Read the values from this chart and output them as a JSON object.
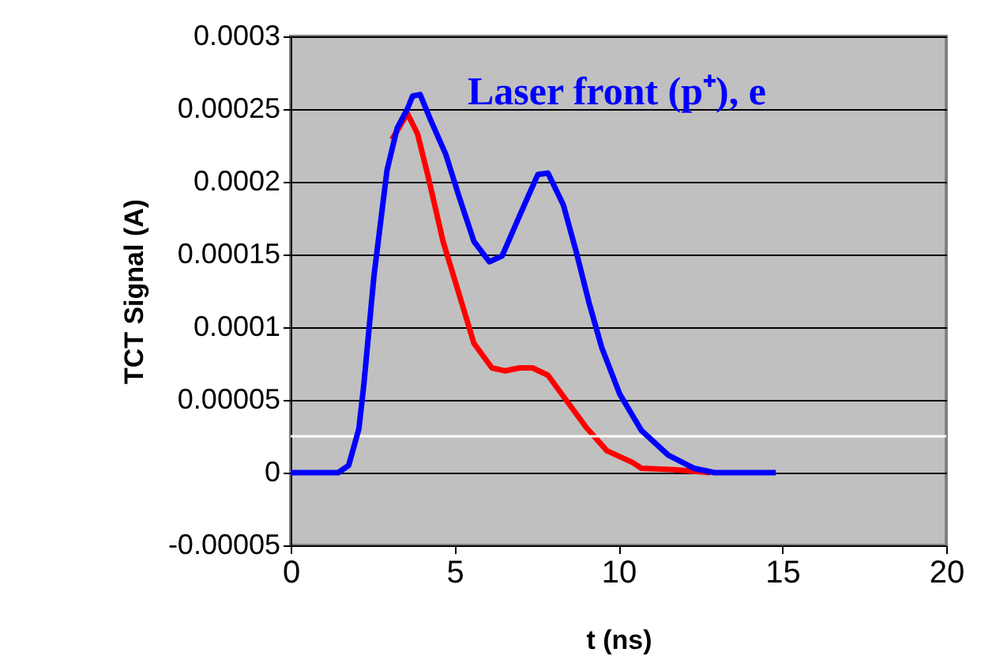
{
  "chart_data": {
    "type": "line",
    "xlabel": "t (ns)",
    "ylabel": "TCT Signal (A)",
    "xlim": [
      0,
      20
    ],
    "xticks": [
      0,
      5,
      10,
      15,
      20
    ],
    "ylim": [
      -5e-05,
      0.0003
    ],
    "yticks": [
      {
        "value": -5e-05,
        "label": "-0.00005"
      },
      0,
      {
        "value": 5e-05,
        "label": "0.00005"
      },
      0.0001,
      0.00015,
      0.0002,
      0.00025,
      0.0003
    ],
    "grid": "y",
    "marker": "none",
    "line_style": "solid",
    "ref_lines": [
      {
        "axis": "y",
        "value": 2.5e-05,
        "color": "#ffffff"
      }
    ],
    "series": [
      {
        "color": "#ff0000",
        "x": [
          3.09,
          3.56,
          3.87,
          4.18,
          4.65,
          5.12,
          5.59,
          6.14,
          6.53,
          6.99,
          7.38,
          7.85,
          8.4,
          9.02,
          9.65,
          10.43,
          10.7,
          11.7,
          12.8
        ],
        "values": [
          0.000229,
          0.000247,
          0.000233,
          0.000205,
          0.000159,
          0.000124,
          8.9e-05,
          7.2e-05,
          7e-05,
          7.2e-05,
          7.2e-05,
          6.7e-05,
          5e-05,
          3.1e-05,
          1.5e-05,
          7e-06,
          3e-06,
          2e-06,
          0
        ]
      },
      {
        "name": "Laser front (p⁺), e",
        "color": "#0000ff",
        "x": [
          0,
          1.45,
          1.77,
          2.08,
          2.23,
          2.54,
          2.94,
          3.25,
          3.56,
          3.72,
          3.95,
          4.26,
          4.73,
          5.12,
          5.59,
          6.06,
          6.45,
          6.99,
          7.54,
          7.85,
          8.32,
          8.71,
          9.1,
          9.49,
          10.04,
          10.7,
          11.52,
          12.3,
          12.93,
          14.8
        ],
        "values": [
          0,
          0,
          5e-06,
          3e-05,
          6e-05,
          0.000135,
          0.000208,
          0.000237,
          0.00025,
          0.000259,
          0.00026,
          0.000243,
          0.000219,
          0.000191,
          0.000159,
          0.000145,
          0.000149,
          0.000177,
          0.000205,
          0.000206,
          0.000184,
          0.000152,
          0.000117,
          8.6e-05,
          5.4e-05,
          2.9e-05,
          1.2e-05,
          3e-06,
          0,
          0
        ]
      }
    ]
  }
}
